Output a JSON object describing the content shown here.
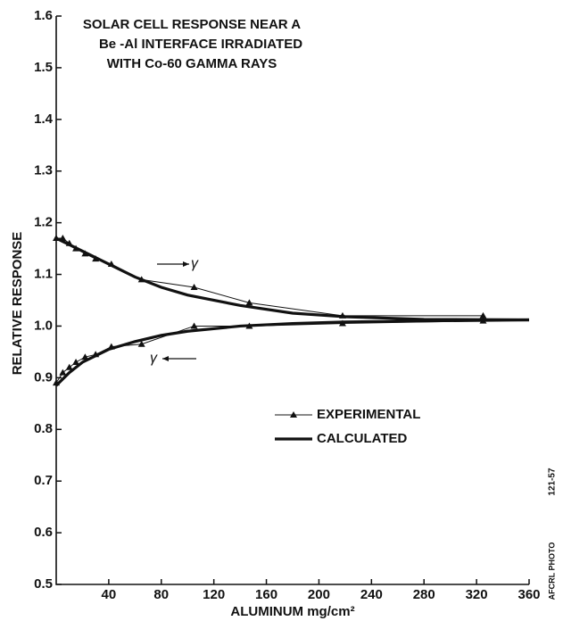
{
  "chart_data": {
    "type": "line",
    "title": [
      "SOLAR CELL RESPONSE NEAR A",
      "Be -Al INTERFACE IRRADIATED",
      "WITH Co-60 GAMMA RAYS"
    ],
    "x_label": "ALUMINUM mg/cm²",
    "y_label": "RELATIVE RESPONSE",
    "xlim": [
      0,
      360
    ],
    "xticks": [
      40,
      80,
      120,
      160,
      200,
      240,
      280,
      320,
      360
    ],
    "ylim": [
      0.5,
      1.6
    ],
    "yticks": [
      0.5,
      0.6,
      0.7,
      0.8,
      0.9,
      {
        "value": 1,
        "label": "1.0"
      },
      1.1,
      1.2,
      1.3,
      1.4,
      1.5,
      1.6
    ],
    "series": [
      {
        "name": "EXPERIMENTAL",
        "style": "markers",
        "color": "#111",
        "branches": [
          {
            "x": [
              0,
              5,
              10,
              15,
              22,
              30,
              42,
              65,
              105,
              147,
              218,
              325
            ],
            "values": [
              1.17,
              1.17,
              1.16,
              1.15,
              1.14,
              1.13,
              1.12,
              1.09,
              1.075,
              1.045,
              1.02,
              1.02
            ]
          },
          {
            "x": [
              0,
              5,
              10,
              15,
              22,
              30,
              42,
              65,
              105,
              147,
              218,
              325
            ],
            "values": [
              0.89,
              0.91,
              0.92,
              0.93,
              0.94,
              0.945,
              0.96,
              0.965,
              1.0,
              1.0,
              1.005,
              1.01
            ]
          }
        ]
      },
      {
        "name": "CALCULATED",
        "style": "line",
        "color": "#111",
        "branches": [
          {
            "x": [
              0,
              20,
              40,
              60,
              80,
              100,
              140,
              180,
              220,
              280,
              360
            ],
            "values": [
              1.17,
              1.145,
              1.12,
              1.095,
              1.075,
              1.06,
              1.04,
              1.025,
              1.018,
              1.013,
              1.012
            ]
          },
          {
            "x": [
              0,
              10,
              20,
              40,
              60,
              80,
              100,
              140,
              180,
              220,
              280,
              360
            ],
            "values": [
              0.885,
              0.91,
              0.93,
              0.955,
              0.97,
              0.982,
              0.99,
              1.0,
              1.005,
              1.008,
              1.01,
              1.012
            ]
          }
        ]
      }
    ],
    "annotations": [
      "γ",
      "γ"
    ],
    "side_labels": [
      "121-57",
      "AFCRL PHOTO"
    ]
  }
}
